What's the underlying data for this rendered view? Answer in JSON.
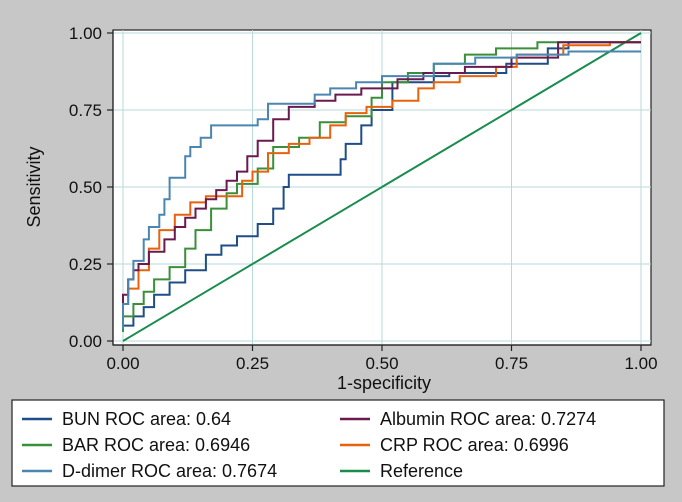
{
  "chart_data": {
    "type": "line",
    "xlabel": "1-specificity",
    "ylabel": "Sensitivity",
    "xlim": [
      0,
      1
    ],
    "ylim": [
      0,
      1
    ],
    "x_ticks": [
      "0.00",
      "0.25",
      "0.50",
      "0.75",
      "1.00"
    ],
    "y_ticks": [
      "0.00",
      "0.25",
      "0.50",
      "0.75",
      "1.00"
    ],
    "grid": true,
    "legend_position": "bottom",
    "series": [
      {
        "name": "BUN",
        "legend": "BUN ROC area: 0.64",
        "color": "#1f4e87",
        "points": [
          [
            0,
            0.03
          ],
          [
            0.02,
            0.05
          ],
          [
            0.04,
            0.08
          ],
          [
            0.06,
            0.11
          ],
          [
            0.09,
            0.15
          ],
          [
            0.12,
            0.19
          ],
          [
            0.16,
            0.23
          ],
          [
            0.19,
            0.28
          ],
          [
            0.22,
            0.31
          ],
          [
            0.26,
            0.34
          ],
          [
            0.29,
            0.38
          ],
          [
            0.31,
            0.43
          ],
          [
            0.32,
            0.5
          ],
          [
            0.33,
            0.54
          ],
          [
            0.42,
            0.54
          ],
          [
            0.43,
            0.59
          ],
          [
            0.46,
            0.64
          ],
          [
            0.48,
            0.7
          ],
          [
            0.52,
            0.75
          ],
          [
            0.52,
            0.82
          ],
          [
            0.6,
            0.84
          ],
          [
            0.63,
            0.86
          ],
          [
            0.68,
            0.87
          ],
          [
            0.74,
            0.87
          ],
          [
            0.82,
            0.9
          ],
          [
            0.86,
            0.95
          ],
          [
            0.9,
            0.97
          ],
          [
            1,
            0.97
          ]
        ]
      },
      {
        "name": "BAR",
        "legend": "BAR ROC area: 0.6946",
        "color": "#3a8f3a",
        "points": [
          [
            0,
            0.03
          ],
          [
            0.02,
            0.08
          ],
          [
            0.04,
            0.12
          ],
          [
            0.06,
            0.16
          ],
          [
            0.09,
            0.2
          ],
          [
            0.12,
            0.24
          ],
          [
            0.14,
            0.3
          ],
          [
            0.17,
            0.36
          ],
          [
            0.2,
            0.43
          ],
          [
            0.22,
            0.48
          ],
          [
            0.26,
            0.51
          ],
          [
            0.29,
            0.56
          ],
          [
            0.34,
            0.63
          ],
          [
            0.38,
            0.66
          ],
          [
            0.43,
            0.71
          ],
          [
            0.48,
            0.73
          ],
          [
            0.5,
            0.79
          ],
          [
            0.55,
            0.84
          ],
          [
            0.6,
            0.87
          ],
          [
            0.66,
            0.9
          ],
          [
            0.72,
            0.93
          ],
          [
            0.8,
            0.95
          ],
          [
            0.9,
            0.97
          ],
          [
            1,
            0.97
          ]
        ]
      },
      {
        "name": "D-dimer",
        "legend": "D-dimer ROC area: 0.7674",
        "color": "#4a86b0",
        "points": [
          [
            0,
            0.04
          ],
          [
            0.01,
            0.12
          ],
          [
            0.02,
            0.2
          ],
          [
            0.04,
            0.26
          ],
          [
            0.05,
            0.33
          ],
          [
            0.07,
            0.37
          ],
          [
            0.08,
            0.41
          ],
          [
            0.09,
            0.46
          ],
          [
            0.12,
            0.53
          ],
          [
            0.13,
            0.6
          ],
          [
            0.15,
            0.63
          ],
          [
            0.17,
            0.66
          ],
          [
            0.2,
            0.7
          ],
          [
            0.26,
            0.7
          ],
          [
            0.28,
            0.72
          ],
          [
            0.31,
            0.77
          ],
          [
            0.37,
            0.77
          ],
          [
            0.4,
            0.8
          ],
          [
            0.45,
            0.82
          ],
          [
            0.5,
            0.84
          ],
          [
            0.6,
            0.86
          ],
          [
            0.68,
            0.9
          ],
          [
            0.76,
            0.92
          ],
          [
            0.86,
            0.93
          ],
          [
            0.96,
            0.94
          ],
          [
            1,
            0.94
          ]
        ]
      },
      {
        "name": "Albumin",
        "legend": "Albumin ROC area: 0.7274",
        "color": "#6a1a4e",
        "points": [
          [
            0,
            0.11
          ],
          [
            0.01,
            0.15
          ],
          [
            0.02,
            0.2
          ],
          [
            0.03,
            0.23
          ],
          [
            0.05,
            0.25
          ],
          [
            0.08,
            0.29
          ],
          [
            0.1,
            0.33
          ],
          [
            0.12,
            0.37
          ],
          [
            0.14,
            0.4
          ],
          [
            0.16,
            0.43
          ],
          [
            0.18,
            0.46
          ],
          [
            0.2,
            0.49
          ],
          [
            0.22,
            0.52
          ],
          [
            0.24,
            0.55
          ],
          [
            0.26,
            0.6
          ],
          [
            0.29,
            0.65
          ],
          [
            0.32,
            0.72
          ],
          [
            0.37,
            0.76
          ],
          [
            0.41,
            0.78
          ],
          [
            0.46,
            0.8
          ],
          [
            0.53,
            0.82
          ],
          [
            0.58,
            0.85
          ],
          [
            0.66,
            0.87
          ],
          [
            0.75,
            0.89
          ],
          [
            0.84,
            0.92
          ],
          [
            0.93,
            0.97
          ],
          [
            1,
            0.97
          ]
        ]
      },
      {
        "name": "CRP",
        "legend": "CRP ROC area: 0.6996",
        "color": "#e8620e",
        "points": [
          [
            0,
            0.08
          ],
          [
            0.01,
            0.12
          ],
          [
            0.03,
            0.17
          ],
          [
            0.05,
            0.23
          ],
          [
            0.07,
            0.3
          ],
          [
            0.1,
            0.36
          ],
          [
            0.13,
            0.41
          ],
          [
            0.16,
            0.45
          ],
          [
            0.19,
            0.47
          ],
          [
            0.23,
            0.47
          ],
          [
            0.25,
            0.52
          ],
          [
            0.28,
            0.55
          ],
          [
            0.32,
            0.61
          ],
          [
            0.36,
            0.64
          ],
          [
            0.4,
            0.66
          ],
          [
            0.43,
            0.7
          ],
          [
            0.47,
            0.74
          ],
          [
            0.52,
            0.76
          ],
          [
            0.57,
            0.78
          ],
          [
            0.6,
            0.82
          ],
          [
            0.65,
            0.84
          ],
          [
            0.72,
            0.86
          ],
          [
            0.76,
            0.89
          ],
          [
            0.85,
            0.93
          ],
          [
            0.94,
            0.96
          ],
          [
            1,
            0.97
          ]
        ]
      },
      {
        "name": "Reference",
        "legend": "Reference",
        "color": "#1a8c4e",
        "points": [
          [
            0,
            0
          ],
          [
            1,
            1
          ]
        ]
      }
    ]
  }
}
